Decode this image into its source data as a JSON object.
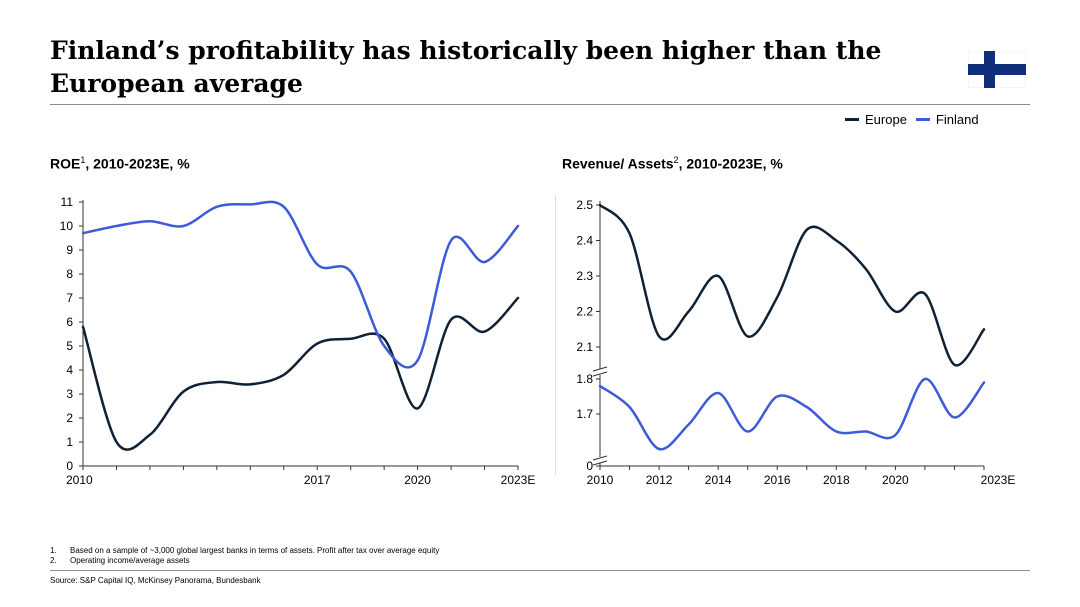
{
  "title_line1": "Finland’s profitability has historically been higher than the",
  "title_line2": "European average",
  "legend": {
    "europe": {
      "label": "Europe",
      "color": "#0f2135"
    },
    "finland": {
      "label": "Finland",
      "color": "#3d5bd8"
    }
  },
  "left_title": {
    "main": "ROE",
    "sup": "1",
    "rest": ", 2010-2023E, %"
  },
  "right_title": {
    "main": "Revenue/ Assets",
    "sup": "2",
    "rest": ", 2010-2023E, %"
  },
  "chart_data": [
    {
      "type": "line",
      "title": "ROE1, 2010-2023E, %",
      "x": [
        2010,
        2011,
        2012,
        2013,
        2014,
        2015,
        2016,
        2017,
        2018,
        2019,
        2020,
        2021,
        2022,
        2023
      ],
      "x_tick_values": [
        2010,
        2017,
        2020,
        2023
      ],
      "x_tick_labels": [
        "2010",
        "2017",
        "2020",
        "2023E"
      ],
      "ylim": [
        0,
        11
      ],
      "y_ticks": [
        0,
        1,
        2,
        3,
        4,
        5,
        6,
        7,
        8,
        9,
        10,
        11
      ],
      "series": [
        {
          "name": "Europe",
          "values": [
            5.8,
            1.0,
            1.3,
            3.1,
            3.5,
            3.4,
            3.8,
            5.1,
            5.3,
            5.3,
            2.4,
            6.1,
            5.6,
            7.0
          ]
        },
        {
          "name": "Finland",
          "values": [
            9.7,
            10.0,
            10.2,
            10.0,
            10.8,
            10.9,
            10.8,
            8.4,
            8.1,
            5.0,
            4.4,
            9.4,
            8.5,
            10.0
          ]
        }
      ]
    },
    {
      "type": "line",
      "title": "Revenue/ Assets2, 2010-2023E, %",
      "x": [
        2010,
        2011,
        2012,
        2013,
        2014,
        2015,
        2016,
        2017,
        2018,
        2019,
        2020,
        2021,
        2022,
        2023
      ],
      "x_tick_values": [
        2010,
        2012,
        2014,
        2016,
        2018,
        2020,
        2023
      ],
      "x_tick_labels": [
        "2010",
        "2012",
        "2014",
        "2016",
        "2018",
        "2020",
        "2023E"
      ],
      "y_axis_break": true,
      "y_ticks": [
        0,
        1.7,
        1.8,
        2.1,
        2.2,
        2.3,
        2.4,
        2.5
      ],
      "y_tick_labels": [
        "0",
        "1.7",
        "1.8",
        "2.1",
        "2.2",
        "2.3",
        "2.4",
        "2.5"
      ],
      "series": [
        {
          "name": "Europe",
          "values": [
            2.5,
            2.42,
            2.13,
            2.2,
            2.3,
            2.13,
            2.24,
            2.43,
            2.4,
            2.32,
            2.2,
            2.25,
            2.05,
            2.15
          ]
        },
        {
          "name": "Finland",
          "values": [
            1.78,
            1.72,
            1.6,
            1.67,
            1.76,
            1.65,
            1.75,
            1.72,
            1.65,
            1.65,
            1.64,
            1.8,
            1.69,
            1.79
          ]
        }
      ]
    }
  ],
  "footnotes": [
    {
      "num": "1.",
      "text": "Based on a sample of ~3,000 global largest banks in terms of assets. Profit after tax over average equity"
    },
    {
      "num": "2.",
      "text": "Operating income/average assets"
    }
  ],
  "source": "Source: S&P Capital IQ, McKinsey Panorama, Bundesbank",
  "flag_colors": {
    "field": "#ffffff",
    "cross": "#0f2f7a"
  }
}
